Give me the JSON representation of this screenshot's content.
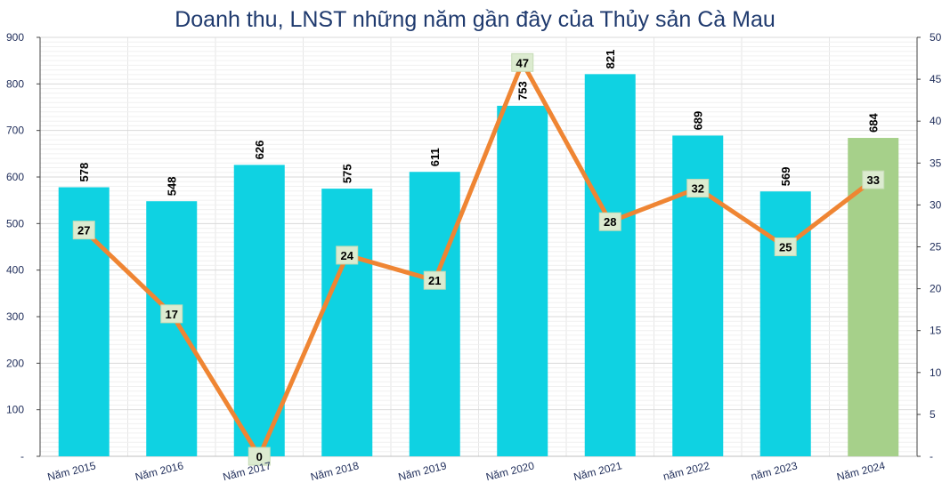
{
  "chart_data": {
    "type": "bar",
    "title": "Doanh thu, LNST những năm gần đây của Thủy sản Cà Mau",
    "categories": [
      "Năm 2015",
      "Năm 2016",
      "Năm 2017",
      "Năm 2018",
      "Năm 2019",
      "Năm 2020",
      "Năm 2021",
      "năm 2022",
      "năm 2023",
      "Năm 2024"
    ],
    "series": [
      {
        "type": "bar",
        "axis": "left",
        "values": [
          578,
          548,
          626,
          575,
          611,
          753,
          821,
          689,
          569,
          684
        ],
        "labels": [
          "578",
          "548",
          "626",
          "575",
          "611",
          "753",
          "821",
          "689",
          "569",
          "684"
        ],
        "color": "#0fd2e2",
        "highlight_last_color": "#a6d08a"
      },
      {
        "type": "line",
        "axis": "right",
        "values": [
          27,
          17,
          0,
          24,
          21,
          47,
          28,
          32,
          25,
          33
        ],
        "labels": [
          "27",
          "17",
          "0",
          "24",
          "21",
          "47",
          "28",
          "32",
          "25",
          "33"
        ],
        "color": "#ef8533"
      }
    ],
    "y_left": {
      "min": 0,
      "max": 900,
      "step": 100,
      "ticks": [
        "-",
        "100",
        "200",
        "300",
        "400",
        "500",
        "600",
        "700",
        "800",
        "900"
      ]
    },
    "y_right": {
      "min": 0,
      "max": 50,
      "step": 5,
      "ticks": [
        "-",
        "5",
        "10",
        "15",
        "20",
        "25",
        "30",
        "35",
        "40",
        "45",
        "50"
      ]
    },
    "grid": true,
    "legend": "none"
  }
}
